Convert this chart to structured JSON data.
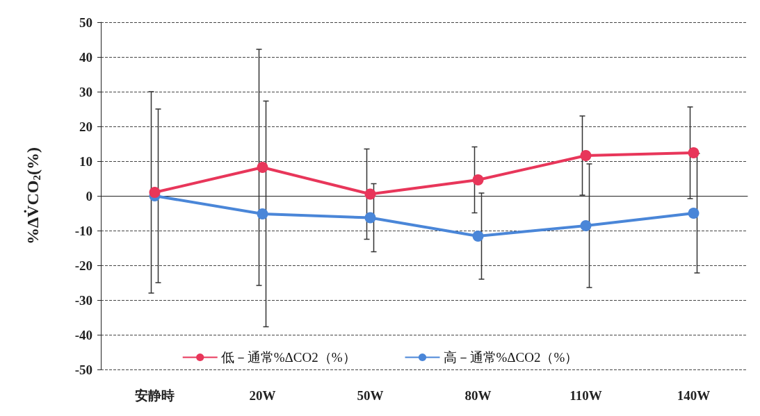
{
  "chart_data": {
    "type": "line",
    "ylabel": "%ΔV̇CO$_{2}$(%)",
    "categories": [
      "安静時",
      "20W",
      "50W",
      "80W",
      "110W",
      "140W"
    ],
    "series": [
      {
        "name": "低－通常%ΔCO2（%）",
        "color": "#e8365a",
        "values": [
          1,
          8.2,
          0.5,
          4.6,
          11.6,
          12.4
        ],
        "errors": [
          29,
          34,
          13,
          9.5,
          11.4,
          13.2
        ]
      },
      {
        "name": "高－通常%ΔCO2（%）",
        "color": "#4a86d8",
        "values": [
          0,
          -5.2,
          -6.3,
          -11.6,
          -8.6,
          -5
        ],
        "errors": [
          25,
          32.5,
          9.8,
          12.4,
          17.8,
          17.2
        ]
      }
    ],
    "ylim": [
      -50,
      50
    ],
    "yticks": [
      -50,
      -40,
      -30,
      -20,
      -10,
      0,
      10,
      20,
      30,
      40,
      50
    ],
    "grid": "y",
    "legend": "bottom",
    "marker": "circle",
    "line_style": "solid"
  }
}
